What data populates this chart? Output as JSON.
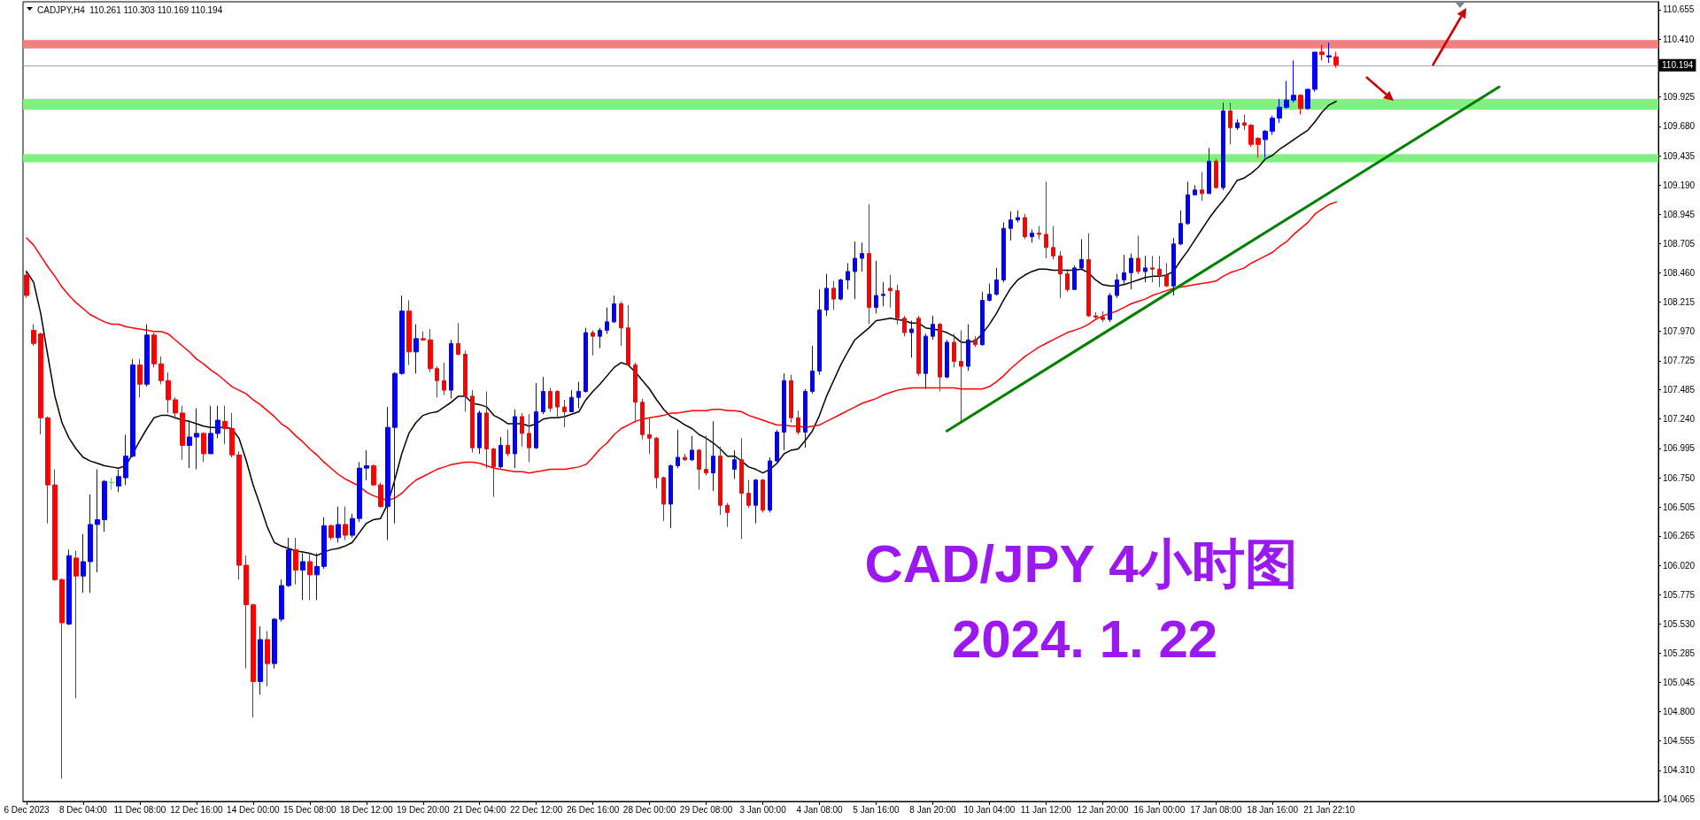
{
  "chart_data": {
    "type": "candlestick",
    "title": "CAD/JPY 4小时图",
    "subtitle": "2024. 1. 22",
    "annotations": [
      "CADJPY,H4  110.261 110.303 110.169 110.194"
    ],
    "categories": [
      "6 Dec 2023",
      null,
      null,
      null,
      null,
      null,
      null,
      null,
      "8 Dec 04:00",
      null,
      null,
      null,
      null,
      null,
      null,
      null,
      "11 Dec 08:00",
      null,
      null,
      null,
      null,
      null,
      null,
      null,
      "12 Dec 16:00",
      null,
      null,
      null,
      null,
      null,
      null,
      null,
      "14 Dec 00:00",
      null,
      null,
      null,
      null,
      null,
      null,
      null,
      "15 Dec 08:00",
      null,
      null,
      null,
      null,
      null,
      null,
      null,
      "18 Dec 12:00",
      null,
      null,
      null,
      null,
      null,
      null,
      null,
      "19 Dec 20:00",
      null,
      null,
      null,
      null,
      null,
      null,
      null,
      "21 Dec 04:00",
      null,
      null,
      null,
      null,
      null,
      null,
      null,
      "22 Dec 12:00",
      null,
      null,
      null,
      null,
      null,
      null,
      null,
      "26 Dec 16:00",
      null,
      null,
      null,
      null,
      null,
      null,
      null,
      "28 Dec 00:00",
      null,
      null,
      null,
      null,
      null,
      null,
      null,
      "29 Dec 08:00",
      null,
      null,
      null,
      null,
      null,
      null,
      null,
      "3 Jan 00:00",
      null,
      null,
      null,
      null,
      null,
      null,
      null,
      "4 Jan 08:00",
      null,
      null,
      null,
      null,
      null,
      null,
      null,
      "5 Jan 16:00",
      null,
      null,
      null,
      null,
      null,
      null,
      null,
      "8 Jan 20:00",
      null,
      null,
      null,
      null,
      null,
      null,
      null,
      "10 Jan 04:00",
      null,
      null,
      null,
      null,
      null,
      null,
      null,
      "11 Jan 12:00",
      null,
      null,
      null,
      null,
      null,
      null,
      null,
      "12 Jan 20:00",
      null,
      null,
      null,
      null,
      null,
      null,
      null,
      "16 Jan 00:00",
      null,
      null,
      null,
      null,
      null,
      null,
      null,
      "17 Jan 08:00",
      null,
      null,
      null,
      null,
      null,
      null,
      null,
      "18 Jan 16:00",
      null,
      null,
      null,
      null,
      null,
      null,
      null,
      "21 Jan 22:10",
      null,
      null,
      null,
      null,
      null,
      null,
      null,
      null,
      null,
      null,
      null,
      null,
      null,
      null,
      null,
      null,
      null,
      null,
      null,
      null,
      null,
      null,
      null,
      null,
      null,
      null,
      null,
      null,
      null,
      null,
      null,
      null,
      null,
      null,
      null,
      null,
      null,
      null,
      null,
      null,
      null,
      null,
      null,
      null,
      null,
      null
    ],
    "ohlc": [
      [
        108.44,
        108.48,
        108.25,
        108.27
      ],
      [
        107.98,
        108.03,
        107.85,
        107.87
      ],
      [
        107.95,
        107.96,
        107.11,
        107.25
      ],
      [
        107.25,
        107.26,
        106.37,
        106.69
      ],
      [
        106.69,
        106.82,
        105.89,
        105.9
      ],
      [
        105.9,
        105.91,
        104.24,
        105.54
      ],
      [
        105.53,
        106.15,
        105.52,
        106.1
      ],
      [
        106.08,
        106.14,
        104.91,
        105.93
      ],
      [
        105.93,
        106.28,
        105.79,
        106.05
      ],
      [
        106.05,
        106.61,
        105.79,
        106.36
      ],
      [
        106.36,
        106.82,
        105.96,
        106.4
      ],
      [
        106.4,
        106.73,
        106.3,
        106.72
      ],
      [
        106.71,
        106.75,
        106.65,
        106.71
      ],
      [
        106.68,
        106.82,
        106.63,
        106.76
      ],
      [
        106.75,
        107.11,
        106.69,
        106.93
      ],
      [
        106.93,
        107.74,
        106.92,
        107.69
      ],
      [
        107.69,
        107.74,
        107.42,
        107.53
      ],
      [
        107.53,
        108.03,
        107.51,
        107.94
      ],
      [
        107.94,
        107.96,
        107.67,
        107.7
      ],
      [
        107.7,
        107.76,
        107.53,
        107.56
      ],
      [
        107.56,
        107.63,
        107.29,
        107.4
      ],
      [
        107.4,
        107.42,
        107.24,
        107.29
      ],
      [
        107.29,
        107.35,
        106.9,
        107.02
      ],
      [
        107.02,
        107.22,
        106.83,
        107.09
      ],
      [
        107.09,
        107.33,
        106.82,
        107.12
      ],
      [
        107.12,
        107.13,
        106.88,
        106.95
      ],
      [
        106.95,
        107.35,
        106.95,
        107.12
      ],
      [
        107.12,
        107.35,
        107.08,
        107.23
      ],
      [
        107.22,
        107.35,
        107.03,
        107.16
      ],
      [
        107.16,
        107.29,
        106.92,
        106.94
      ],
      [
        106.94,
        106.97,
        105.9,
        106.02
      ],
      [
        106.02,
        106.1,
        105.16,
        105.69
      ],
      [
        105.69,
        105.7,
        104.75,
        105.05
      ],
      [
        105.05,
        105.51,
        104.94,
        105.4
      ],
      [
        105.4,
        105.47,
        105.01,
        105.2
      ],
      [
        105.2,
        105.58,
        105.16,
        105.57
      ],
      [
        105.57,
        105.9,
        105.55,
        105.85
      ],
      [
        105.85,
        106.25,
        105.84,
        106.15
      ],
      [
        106.15,
        106.25,
        105.86,
        105.98
      ],
      [
        105.98,
        106.12,
        105.73,
        106.05
      ],
      [
        106.05,
        106.12,
        105.73,
        105.94
      ],
      [
        105.94,
        106.12,
        105.73,
        106.01
      ],
      [
        106.01,
        106.42,
        105.99,
        106.35
      ],
      [
        106.35,
        106.36,
        106.23,
        106.25
      ],
      [
        106.25,
        106.51,
        106.21,
        106.36
      ],
      [
        106.36,
        106.51,
        106.23,
        106.27
      ],
      [
        106.27,
        106.45,
        106.25,
        106.41
      ],
      [
        106.41,
        106.88,
        106.38,
        106.83
      ],
      [
        106.83,
        106.98,
        106.73,
        106.85
      ],
      [
        106.85,
        106.86,
        106.68,
        106.69
      ],
      [
        106.69,
        106.71,
        106.5,
        106.51
      ],
      [
        106.51,
        107.34,
        106.23,
        107.17
      ],
      [
        107.17,
        107.63,
        106.37,
        107.62
      ],
      [
        107.62,
        108.27,
        107.61,
        108.14
      ],
      [
        108.14,
        108.23,
        107.69,
        107.8
      ],
      [
        107.8,
        108.03,
        107.62,
        107.91
      ],
      [
        107.91,
        107.97,
        107.89,
        107.9
      ],
      [
        107.9,
        107.99,
        107.63,
        107.66
      ],
      [
        107.66,
        107.68,
        107.42,
        107.56
      ],
      [
        107.56,
        107.71,
        107.44,
        107.48
      ],
      [
        107.48,
        107.9,
        107.41,
        107.87
      ],
      [
        107.87,
        108.04,
        107.77,
        107.78
      ],
      [
        107.78,
        107.81,
        107.3,
        107.43
      ],
      [
        107.43,
        107.48,
        106.96,
        107.0
      ],
      [
        107.0,
        107.31,
        106.95,
        107.29
      ],
      [
        107.29,
        107.47,
        106.83,
        106.99
      ],
      [
        106.99,
        107.0,
        106.59,
        106.84
      ],
      [
        106.84,
        107.09,
        106.83,
        107.02
      ],
      [
        107.02,
        107.15,
        106.93,
        106.95
      ],
      [
        106.95,
        107.32,
        106.83,
        107.26
      ],
      [
        107.26,
        107.29,
        107.01,
        107.12
      ],
      [
        107.12,
        107.28,
        106.88,
        107.0
      ],
      [
        107.0,
        107.54,
        106.99,
        107.3
      ],
      [
        107.3,
        107.59,
        107.28,
        107.47
      ],
      [
        107.47,
        107.5,
        107.3,
        107.33
      ],
      [
        107.47,
        107.48,
        107.25,
        107.34
      ],
      [
        107.34,
        107.4,
        107.17,
        107.3
      ],
      [
        107.3,
        107.48,
        107.3,
        107.42
      ],
      [
        107.42,
        107.55,
        107.33,
        107.47
      ],
      [
        107.47,
        108.0,
        107.46,
        107.96
      ],
      [
        107.96,
        107.98,
        107.77,
        107.93
      ],
      [
        107.93,
        108.0,
        107.83,
        107.98
      ],
      [
        107.98,
        108.17,
        107.95,
        108.05
      ],
      [
        108.05,
        108.27,
        108.04,
        108.2
      ],
      [
        108.2,
        108.22,
        107.85,
        108.0
      ],
      [
        108.0,
        108.19,
        107.68,
        107.69
      ],
      [
        107.69,
        107.71,
        107.21,
        107.38
      ],
      [
        107.38,
        107.41,
        107.07,
        107.11
      ],
      [
        107.11,
        107.25,
        106.95,
        107.08
      ],
      [
        107.08,
        107.09,
        106.66,
        106.75
      ],
      [
        106.75,
        106.76,
        106.39,
        106.53
      ],
      [
        106.53,
        106.86,
        106.33,
        106.85
      ],
      [
        106.85,
        107.15,
        106.83,
        106.92
      ],
      [
        106.92,
        106.95,
        106.89,
        106.9
      ],
      [
        106.9,
        107.1,
        106.89,
        106.98
      ],
      [
        106.98,
        106.99,
        106.65,
        106.82
      ],
      [
        106.82,
        107.1,
        106.77,
        106.79
      ],
      [
        106.79,
        107.22,
        106.64,
        106.93
      ],
      [
        106.93,
        107.01,
        106.44,
        106.52
      ],
      [
        106.52,
        106.54,
        106.34,
        106.46
      ],
      [
        106.82,
        106.98,
        106.74,
        106.9
      ],
      [
        106.9,
        107.08,
        106.24,
        106.62
      ],
      [
        106.62,
        106.73,
        106.5,
        106.52
      ],
      [
        106.52,
        106.74,
        106.37,
        106.73
      ],
      [
        106.73,
        106.74,
        106.46,
        106.48
      ],
      [
        106.48,
        106.92,
        106.46,
        106.89
      ],
      [
        106.89,
        107.15,
        106.88,
        107.13
      ],
      [
        107.13,
        107.62,
        106.98,
        107.56
      ],
      [
        107.56,
        107.61,
        107.21,
        107.25
      ],
      [
        107.25,
        107.31,
        107.11,
        107.13
      ],
      [
        107.13,
        107.49,
        107.0,
        107.47
      ],
      [
        107.47,
        107.85,
        107.45,
        107.64
      ],
      [
        107.64,
        108.32,
        107.61,
        108.15
      ],
      [
        108.15,
        108.45,
        108.1,
        108.33
      ],
      [
        108.33,
        108.39,
        108.15,
        108.24
      ],
      [
        108.24,
        108.41,
        108.23,
        108.4
      ],
      [
        108.4,
        108.54,
        108.32,
        108.47
      ],
      [
        108.47,
        108.72,
        108.24,
        108.58
      ],
      [
        108.58,
        108.71,
        108.47,
        108.62
      ],
      [
        108.62,
        109.03,
        108.03,
        108.17
      ],
      [
        108.17,
        108.56,
        108.12,
        108.27
      ],
      [
        108.27,
        108.38,
        108.18,
        108.28
      ],
      [
        108.33,
        108.44,
        108.17,
        108.31
      ],
      [
        108.31,
        108.36,
        108.03,
        108.08
      ],
      [
        108.08,
        108.1,
        107.93,
        107.96
      ],
      [
        107.96,
        108.06,
        107.75,
        107.99
      ],
      [
        108.08,
        108.1,
        107.6,
        107.62
      ],
      [
        107.62,
        107.95,
        107.49,
        107.93
      ],
      [
        107.93,
        108.1,
        107.9,
        108.03
      ],
      [
        108.03,
        108.04,
        107.47,
        107.59
      ],
      [
        107.59,
        107.9,
        107.58,
        107.88
      ],
      [
        107.88,
        107.95,
        107.67,
        107.72
      ],
      [
        107.72,
        107.98,
        107.22,
        107.68
      ],
      [
        107.68,
        108.03,
        107.64,
        107.9
      ],
      [
        107.9,
        107.93,
        107.84,
        107.86
      ],
      [
        107.86,
        108.3,
        107.85,
        108.23
      ],
      [
        108.23,
        108.37,
        108.22,
        108.28
      ],
      [
        108.28,
        108.5,
        108.27,
        108.4
      ],
      [
        108.4,
        108.88,
        108.38,
        108.83
      ],
      [
        108.83,
        108.97,
        108.73,
        108.9
      ],
      [
        108.9,
        108.98,
        108.88,
        108.92
      ],
      [
        108.92,
        108.95,
        108.74,
        108.76
      ],
      [
        108.76,
        108.82,
        108.71,
        108.79
      ],
      [
        108.79,
        108.85,
        108.74,
        108.78
      ],
      [
        108.78,
        109.22,
        108.58,
        108.67
      ],
      [
        108.67,
        108.85,
        108.57,
        108.6
      ],
      [
        108.6,
        108.64,
        108.25,
        108.45
      ],
      [
        108.45,
        108.49,
        108.3,
        108.32
      ],
      [
        108.32,
        108.52,
        108.32,
        108.5
      ],
      [
        108.5,
        108.74,
        108.49,
        108.57
      ],
      [
        108.57,
        108.79,
        108.09,
        108.1
      ],
      [
        108.1,
        108.13,
        108.07,
        108.09
      ],
      [
        108.09,
        108.14,
        108.05,
        108.07
      ],
      [
        108.07,
        108.29,
        108.05,
        108.27
      ],
      [
        108.27,
        108.45,
        108.25,
        108.4
      ],
      [
        108.4,
        108.61,
        108.36,
        108.46
      ],
      [
        108.46,
        108.62,
        108.32,
        108.58
      ],
      [
        108.58,
        108.77,
        108.45,
        108.47
      ],
      [
        108.47,
        108.6,
        108.38,
        108.5
      ],
      [
        108.5,
        108.6,
        108.38,
        108.49
      ],
      [
        108.49,
        108.6,
        108.34,
        108.44
      ],
      [
        108.44,
        108.54,
        108.34,
        108.35
      ],
      [
        108.35,
        108.75,
        108.27,
        108.7
      ],
      [
        108.7,
        108.98,
        108.69,
        108.87
      ],
      [
        108.87,
        109.22,
        108.86,
        109.11
      ],
      [
        109.11,
        109.19,
        109.11,
        109.15
      ],
      [
        109.15,
        109.3,
        109.06,
        109.12
      ],
      [
        109.12,
        109.5,
        109.12,
        109.39
      ],
      [
        109.39,
        109.41,
        109.16,
        109.17
      ],
      [
        109.17,
        109.88,
        109.15,
        109.81
      ],
      [
        109.81,
        109.88,
        109.53,
        109.67
      ],
      [
        109.67,
        109.74,
        109.65,
        109.71
      ],
      [
        109.71,
        109.78,
        109.65,
        109.69
      ],
      [
        109.69,
        109.7,
        109.51,
        109.53
      ],
      [
        109.58,
        109.59,
        109.42,
        109.53
      ],
      [
        109.57,
        109.65,
        109.42,
        109.64
      ],
      [
        109.64,
        109.77,
        109.61,
        109.75
      ],
      [
        109.75,
        109.91,
        109.71,
        109.84
      ],
      [
        109.84,
        110.06,
        109.83,
        109.9
      ],
      [
        109.9,
        110.23,
        109.88,
        109.94
      ],
      [
        109.94,
        109.95,
        109.78,
        109.83
      ],
      [
        109.83,
        109.99,
        109.82,
        109.99
      ],
      [
        109.99,
        110.3,
        109.97,
        110.3
      ],
      [
        110.3,
        110.36,
        110.23,
        110.28
      ],
      [
        110.26,
        110.38,
        110.21,
        110.27
      ],
      [
        110.261,
        110.303,
        110.169,
        110.194
      ],
      null,
      null,
      null,
      null,
      null,
      null,
      null,
      null,
      null,
      null,
      null,
      null,
      null,
      null,
      null,
      null,
      null,
      null,
      null,
      null,
      null,
      null,
      null,
      null,
      null,
      null,
      null,
      null,
      null,
      null,
      null,
      null,
      null,
      null,
      null,
      null,
      null,
      null,
      null,
      null,
      null,
      null,
      null,
      null,
      null
    ],
    "colors": [
      "#ff0000",
      "#ff0000",
      "#ff0000",
      "#ff0000",
      "#ff0000",
      "#ff0000",
      "#0000ff",
      "#ff0000",
      "#0000ff",
      "#0000ff",
      "#0000ff",
      "#0000ff",
      "#00ff00",
      "#0000ff",
      "#0000ff",
      "#0000ff",
      "#ff0000",
      "#0000ff",
      "#ff0000",
      "#ff0000",
      "#ff0000",
      "#ff0000",
      "#ff0000",
      "#0000ff",
      "#0000ff",
      "#ff0000",
      "#0000ff",
      "#0000ff",
      "#ff0000",
      "#ff0000",
      "#ff0000",
      "#ff0000",
      "#ff0000",
      "#0000ff",
      "#ff0000",
      "#0000ff",
      "#0000ff",
      "#0000ff",
      "#ff0000",
      "#0000ff",
      "#ff0000",
      "#0000ff",
      "#0000ff",
      "#ff0000",
      "#0000ff",
      "#ff0000",
      "#0000ff",
      "#0000ff",
      "#0000ff",
      "#ff0000",
      "#ff0000",
      "#0000ff",
      "#0000ff",
      "#0000ff",
      "#ff0000",
      "#0000ff",
      "#ff0000",
      "#ff0000",
      "#ff0000",
      "#ff0000",
      "#0000ff",
      "#ff0000",
      "#ff0000",
      "#ff0000",
      "#0000ff",
      "#ff0000",
      "#ff0000",
      "#0000ff",
      "#ff0000",
      "#0000ff",
      "#ff0000",
      "#ff0000",
      "#0000ff",
      "#0000ff",
      "#ff0000",
      "#ff0000",
      "#ff0000",
      "#0000ff",
      "#0000ff",
      "#0000ff",
      "#ff0000",
      "#0000ff",
      "#0000ff",
      "#0000ff",
      "#ff0000",
      "#ff0000",
      "#ff0000",
      "#ff0000",
      "#ff0000",
      "#ff0000",
      "#ff0000",
      "#0000ff",
      "#0000ff",
      "#ff0000",
      "#0000ff",
      "#ff0000",
      "#ff0000",
      "#0000ff",
      "#ff0000",
      "#ff0000",
      "#0000ff",
      "#ff0000",
      "#ff0000",
      "#0000ff",
      "#ff0000",
      "#0000ff",
      "#0000ff",
      "#0000ff",
      "#ff0000",
      "#ff0000",
      "#0000ff",
      "#0000ff",
      "#0000ff",
      "#0000ff",
      "#ff0000",
      "#0000ff",
      "#0000ff",
      "#0000ff",
      "#0000ff",
      "#ff0000",
      "#0000ff",
      "#0000ff",
      "#ff0000",
      "#ff0000",
      "#ff0000",
      "#0000ff",
      "#ff0000",
      "#0000ff",
      "#0000ff",
      "#ff0000",
      "#0000ff",
      "#ff0000",
      "#ff0000",
      "#0000ff",
      "#ff0000",
      "#0000ff",
      "#0000ff",
      "#0000ff",
      "#0000ff",
      "#0000ff",
      "#0000ff",
      "#ff0000",
      "#0000ff",
      "#ff0000",
      "#ff0000",
      "#ff0000",
      "#ff0000",
      "#ff0000",
      "#0000ff",
      "#0000ff",
      "#ff0000",
      "#ff0000",
      "#ff0000",
      "#0000ff",
      "#0000ff",
      "#0000ff",
      "#0000ff",
      "#ff0000",
      "#0000ff",
      "#ff0000",
      "#ff0000",
      "#ff0000",
      "#0000ff",
      "#0000ff",
      "#0000ff",
      "#0000ff",
      "#ff0000",
      "#0000ff",
      "#ff0000",
      "#0000ff",
      "#ff0000",
      "#0000ff",
      "#ff0000",
      "#ff0000",
      "#ff0000",
      "#0000ff",
      "#0000ff",
      "#0000ff",
      "#0000ff",
      "#0000ff",
      "#ff0000",
      "#0000ff",
      "#0000ff",
      "#ff0000",
      "#0000ff",
      "#ff0000",
      null,
      null,
      null,
      null,
      null,
      null,
      null,
      null,
      null,
      null,
      null,
      null,
      null,
      null,
      null,
      null,
      null,
      null,
      null,
      null,
      null,
      null,
      null,
      null,
      null,
      null,
      null,
      null,
      null,
      null,
      null,
      null,
      null,
      null,
      null,
      null,
      null,
      null,
      null,
      null,
      null,
      null,
      null,
      null,
      null
    ],
    "series": [
      {
        "type": "line",
        "color": "#000000",
        "values": [
          108.47,
          108.38,
          108.12,
          107.77,
          107.43,
          107.21,
          107.08,
          106.99,
          106.92,
          106.89,
          106.87,
          106.85,
          106.84,
          106.83,
          106.85,
          106.95,
          107.06,
          107.16,
          107.25,
          107.27,
          107.27,
          107.25,
          107.23,
          107.22,
          107.2,
          107.18,
          107.17,
          107.17,
          107.17,
          107.16,
          107.08,
          106.9,
          106.69,
          106.52,
          106.34,
          106.21,
          106.18,
          106.16,
          106.14,
          106.13,
          106.12,
          106.1,
          106.13,
          106.15,
          106.16,
          106.18,
          106.21,
          106.29,
          106.37,
          106.4,
          106.41,
          106.53,
          106.73,
          106.95,
          107.12,
          107.21,
          107.27,
          107.29,
          107.3,
          107.34,
          107.38,
          107.43,
          107.43,
          107.37,
          107.36,
          107.34,
          107.27,
          107.24,
          107.2,
          107.2,
          107.2,
          107.18,
          107.2,
          107.24,
          107.25,
          107.25,
          107.26,
          107.28,
          107.3,
          107.4,
          107.47,
          107.53,
          107.6,
          107.67,
          107.71,
          107.69,
          107.63,
          107.56,
          107.49,
          107.4,
          107.32,
          107.26,
          107.23,
          107.19,
          107.16,
          107.11,
          107.08,
          107.04,
          106.99,
          106.93,
          106.93,
          106.89,
          106.84,
          106.82,
          106.79,
          106.82,
          106.87,
          106.95,
          106.98,
          106.99,
          107.06,
          107.14,
          107.27,
          107.43,
          107.56,
          107.69,
          107.8,
          107.9,
          107.95,
          108.0,
          108.06,
          108.07,
          108.08,
          108.07,
          108.06,
          108.04,
          108.04,
          108.0,
          107.99,
          107.98,
          107.96,
          107.93,
          107.88,
          107.88,
          107.89,
          107.95,
          108.03,
          108.12,
          108.23,
          108.33,
          108.4,
          108.44,
          108.47,
          108.49,
          108.49,
          108.48,
          108.48,
          108.48,
          108.48,
          108.49,
          108.46,
          108.4,
          108.36,
          108.35,
          108.35,
          108.36,
          108.38,
          108.4,
          108.42,
          108.43,
          108.43,
          108.44,
          108.47,
          108.56,
          108.64,
          108.73,
          108.82,
          108.91,
          108.99,
          109.06,
          109.14,
          109.23,
          109.25,
          109.29,
          109.34,
          109.41,
          109.44,
          109.49,
          109.53,
          109.57,
          109.61,
          109.65,
          109.72,
          109.8,
          109.86,
          109.89,
          null,
          null,
          null,
          null,
          null,
          null,
          null,
          null,
          null,
          null,
          null,
          null,
          null,
          null,
          null,
          null,
          null,
          null,
          null,
          null,
          null,
          null,
          null,
          null,
          null,
          null,
          null,
          null,
          null,
          null,
          null,
          null,
          null,
          null,
          null,
          null,
          null,
          null,
          null,
          null,
          null,
          null,
          null,
          null,
          null
        ]
      },
      {
        "type": "line",
        "color": "#ff0000",
        "values": [
          108.75,
          108.69,
          108.6,
          108.51,
          108.43,
          108.34,
          108.27,
          108.21,
          108.16,
          108.11,
          108.08,
          108.05,
          108.03,
          108.03,
          108.01,
          108.0,
          107.99,
          107.98,
          107.97,
          107.97,
          107.95,
          107.9,
          107.85,
          107.8,
          107.74,
          107.7,
          107.65,
          107.61,
          107.56,
          107.51,
          107.48,
          107.45,
          107.4,
          107.36,
          107.31,
          107.26,
          107.2,
          107.16,
          107.1,
          107.05,
          106.99,
          106.94,
          106.88,
          106.83,
          106.78,
          106.74,
          106.71,
          106.68,
          106.63,
          106.6,
          106.58,
          106.56,
          106.58,
          106.62,
          106.68,
          106.73,
          106.76,
          106.79,
          106.82,
          106.84,
          106.86,
          106.87,
          106.88,
          106.88,
          106.87,
          106.85,
          106.83,
          106.82,
          106.81,
          106.8,
          106.8,
          106.79,
          106.8,
          106.81,
          106.82,
          106.82,
          106.82,
          106.83,
          106.84,
          106.86,
          106.92,
          106.99,
          107.04,
          107.11,
          107.16,
          107.19,
          107.22,
          107.24,
          107.25,
          107.26,
          107.27,
          107.29,
          107.29,
          107.3,
          107.31,
          107.31,
          107.31,
          107.32,
          107.32,
          107.31,
          107.31,
          107.3,
          107.27,
          107.25,
          107.23,
          107.21,
          107.19,
          107.19,
          107.18,
          107.18,
          107.17,
          107.18,
          107.19,
          107.22,
          107.25,
          107.28,
          107.31,
          107.34,
          107.37,
          107.39,
          107.41,
          107.44,
          107.46,
          107.48,
          107.49,
          107.5,
          107.5,
          107.5,
          107.5,
          107.5,
          107.5,
          107.5,
          107.49,
          107.49,
          107.49,
          107.49,
          107.51,
          107.55,
          107.6,
          107.66,
          107.71,
          107.76,
          107.8,
          107.84,
          107.87,
          107.9,
          107.93,
          107.96,
          107.98,
          108.0,
          108.03,
          108.07,
          108.1,
          108.12,
          108.14,
          108.17,
          108.2,
          108.22,
          108.24,
          108.27,
          108.29,
          108.31,
          108.33,
          108.34,
          108.35,
          108.36,
          108.37,
          108.38,
          108.39,
          108.43,
          108.46,
          108.48,
          108.5,
          108.54,
          108.57,
          108.6,
          108.63,
          108.68,
          108.72,
          108.78,
          108.83,
          108.88,
          108.95,
          108.99,
          109.03,
          109.05,
          null,
          null,
          null,
          null,
          null,
          null,
          null,
          null,
          null,
          null,
          null,
          null,
          null,
          null,
          null,
          null,
          null,
          null,
          null,
          null,
          null,
          null,
          null,
          null,
          null,
          null,
          null,
          null,
          null,
          null,
          null,
          null,
          null,
          null,
          null,
          null,
          null,
          null,
          null,
          null,
          null,
          null,
          null,
          null,
          null
        ]
      },
      {
        "type": "line",
        "color": "#008000",
        "values": [
          null,
          null,
          null,
          null,
          null,
          null,
          null,
          null,
          null,
          null,
          null,
          null,
          null,
          null,
          null,
          null,
          null,
          null,
          null,
          null,
          null,
          null,
          null,
          null,
          null,
          null,
          null,
          null,
          null,
          null,
          null,
          null,
          null,
          null,
          null,
          null,
          null,
          null,
          null,
          null,
          null,
          null,
          null,
          null,
          null,
          null,
          null,
          null,
          null,
          null,
          null,
          null,
          null,
          null,
          null,
          null,
          null,
          null,
          null,
          null,
          null,
          null,
          null,
          null,
          null,
          null,
          null,
          null,
          null,
          null,
          null,
          null,
          null,
          null,
          null,
          null,
          null,
          null,
          null,
          null,
          null,
          null,
          null,
          null,
          null,
          null,
          null,
          null,
          null,
          null,
          null,
          null,
          null,
          null,
          null,
          null,
          null,
          null,
          null,
          null,
          null,
          null,
          null,
          null,
          null,
          null,
          null,
          null,
          null,
          null,
          null,
          null,
          null,
          null,
          null,
          null,
          null,
          null,
          null,
          null,
          null,
          null,
          null,
          null,
          null,
          null,
          null,
          null,
          null,
          null,
          107.14,
          null,
          null,
          null,
          null,
          null,
          null,
          null,
          null,
          null,
          null,
          null,
          null,
          null,
          null,
          null,
          null,
          null,
          null,
          null,
          null,
          null,
          null,
          null,
          null,
          null,
          null,
          null,
          null,
          null,
          null,
          null,
          null,
          null,
          null,
          null,
          null,
          null,
          null,
          null,
          null,
          null,
          null,
          null,
          null,
          null,
          null,
          null,
          null,
          null,
          null,
          null,
          null,
          null,
          null,
          null,
          null,
          null,
          null,
          null,
          null,
          null,
          null,
          null,
          null,
          null,
          null,
          null,
          null,
          null,
          null,
          null,
          null,
          null,
          null,
          null,
          null,
          null,
          110.01,
          null,
          null,
          null,
          null,
          null,
          null,
          null,
          null,
          null,
          null,
          null,
          null,
          null,
          null,
          null,
          null,
          null,
          null,
          null,
          null,
          null,
          null
        ]
      }
    ],
    "ylim": [
      104.05,
      110.72
    ],
    "yticks": [
      104.065,
      {
        "value": 104.31,
        "label": "104.310"
      },
      104.555,
      {
        "value": 104.8,
        "label": "104.800"
      },
      105.045,
      105.285,
      {
        "value": 105.53,
        "label": "105.530"
      },
      105.775,
      {
        "value": 106.02,
        "label": "106.020"
      },
      106.265,
      106.505,
      {
        "value": 106.75,
        "label": "106.750"
      },
      106.995,
      {
        "value": 107.24,
        "label": "107.240"
      },
      107.485,
      107.725,
      {
        "value": 107.97,
        "label": "107.970"
      },
      108.215,
      {
        "value": 108.46,
        "label": "108.460"
      },
      108.705,
      108.945,
      {
        "value": 109.19,
        "label": "109.190"
      },
      109.435,
      {
        "value": 109.68,
        "label": "109.680"
      },
      109.925,
      {
        "value": 110.41,
        "label": "110.410"
      },
      110.655
    ],
    "ref_lines": [
      {
        "axis": "y",
        "value": 110.194,
        "label": "110.194",
        "color": "#9aa3ad"
      }
    ],
    "bands": [
      {
        "axis": "y",
        "from": 110.33,
        "to": 110.4,
        "color": "#f08080"
      },
      {
        "axis": "y",
        "from": 109.82,
        "to": 109.91,
        "color": "#80f080"
      },
      {
        "axis": "y",
        "from": 109.38,
        "to": 109.45,
        "color": "#80f080"
      }
    ]
  }
}
